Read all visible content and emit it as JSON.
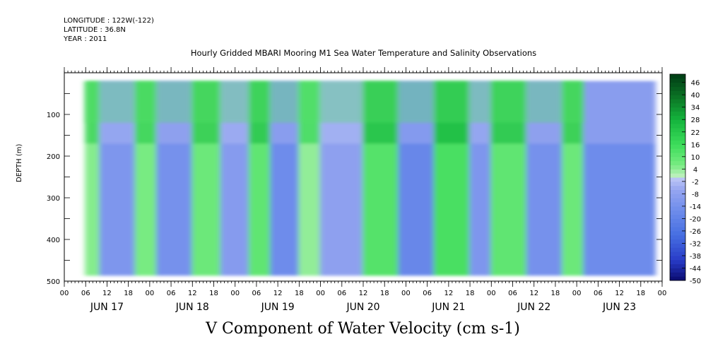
{
  "header": {
    "longitude": "LONGITUDE : 122W(-122)",
    "latitude": "LATITUDE : 36.8N",
    "year": "YEAR : 2011"
  },
  "chart_data": {
    "type": "heatmap",
    "title": "Hourly Gridded MBARI Mooring M1 Sea Water Temperature and Salinity Observations",
    "xlabel": "V Component of Water Velocity (cm s-1)",
    "ylabel": "DEPTH (m)",
    "y_ticks": [
      100,
      200,
      300,
      400,
      500
    ],
    "y_range": [
      0,
      500
    ],
    "y_inverted": true,
    "x_tick_labels": [
      "00",
      "06",
      "12",
      "18",
      "00",
      "06",
      "12",
      "18",
      "00",
      "06",
      "12",
      "18",
      "00",
      "06",
      "12",
      "18",
      "00",
      "06",
      "12",
      "18",
      "00",
      "06",
      "12",
      "18",
      "00",
      "06",
      "12",
      "18",
      "00"
    ],
    "date_labels": [
      "JUN 17",
      "JUN 18",
      "JUN 19",
      "JUN 20",
      "JUN 21",
      "JUN 22",
      "JUN 23"
    ],
    "x_range_hours": [
      0,
      168
    ],
    "colorbar": {
      "labels": [
        "46",
        "40",
        "34",
        "28",
        "22",
        "16",
        "10",
        "4",
        "-2",
        "-8",
        "-14",
        "-20",
        "-26",
        "-32",
        "-38",
        "-44",
        "-50"
      ],
      "range": [
        -50,
        50
      ],
      "step": 6
    },
    "data_extent": {
      "start_hour": 6,
      "end_hour": 166,
      "top_depth": 20,
      "bottom_depth": 487
    },
    "band_pattern": [
      {
        "start_hour": 6,
        "end_hour": 10,
        "value": 5
      },
      {
        "start_hour": 10,
        "end_hour": 20,
        "value": -12
      },
      {
        "start_hour": 20,
        "end_hour": 26,
        "value": 6
      },
      {
        "start_hour": 26,
        "end_hour": 36,
        "value": -14
      },
      {
        "start_hour": 36,
        "end_hour": 44,
        "value": 8
      },
      {
        "start_hour": 44,
        "end_hour": 52,
        "value": -10
      },
      {
        "start_hour": 52,
        "end_hour": 58,
        "value": 10
      },
      {
        "start_hour": 58,
        "end_hour": 66,
        "value": -16
      },
      {
        "start_hour": 66,
        "end_hour": 72,
        "value": 4
      },
      {
        "start_hour": 72,
        "end_hour": 84,
        "value": -8
      },
      {
        "start_hour": 84,
        "end_hour": 94,
        "value": 12
      },
      {
        "start_hour": 94,
        "end_hour": 104,
        "value": -18
      },
      {
        "start_hour": 104,
        "end_hour": 114,
        "value": 14
      },
      {
        "start_hour": 114,
        "end_hour": 120,
        "value": -12
      },
      {
        "start_hour": 120,
        "end_hour": 130,
        "value": 10
      },
      {
        "start_hour": 130,
        "end_hour": 140,
        "value": -14
      },
      {
        "start_hour": 140,
        "end_hour": 146,
        "value": 8
      },
      {
        "start_hour": 146,
        "end_hour": 166,
        "value": -16
      }
    ]
  }
}
